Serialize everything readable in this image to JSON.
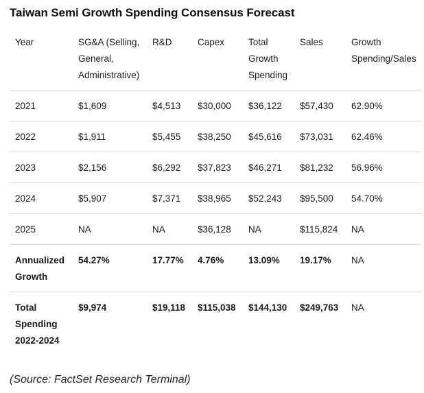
{
  "title": "Taiwan Semi Growth Spending Consensus Forecast",
  "table": {
    "headers": [
      [
        "Year"
      ],
      [
        "SG&A (Selling,",
        "General,",
        "Administrative)"
      ],
      [
        "R&D"
      ],
      [
        "Capex"
      ],
      [
        "Total",
        "Growth",
        "Spending"
      ],
      [
        "Sales"
      ],
      [
        "Growth",
        "Spending/Sales"
      ]
    ],
    "rows": [
      {
        "cells": [
          "2021",
          "$1,609",
          "$4,513",
          "$30,000",
          "$36,122",
          "$57,430",
          "62.90%"
        ]
      },
      {
        "cells": [
          "2022",
          "$1,911",
          "$5,455",
          "$38,250",
          "$45,616",
          "$73,031",
          "62.46%"
        ]
      },
      {
        "cells": [
          "2023",
          "$2,156",
          "$6,292",
          "$37,823",
          "$46,271",
          "$81,232",
          "56.96%"
        ]
      },
      {
        "cells": [
          "2024",
          "$5,907",
          "$7,371",
          "$38,965",
          "$52,243",
          "$95,500",
          "54.70%"
        ]
      },
      {
        "cells": [
          "2025",
          "NA",
          "NA",
          "$36,128",
          "NA",
          "$115,824",
          "NA"
        ]
      }
    ],
    "summary_rows": [
      {
        "label": [
          "Annualized",
          "Growth"
        ],
        "cells": [
          "54.27%",
          "17.77%",
          "4.76%",
          "13.09%",
          "19.17%",
          "NA"
        ]
      },
      {
        "label": [
          "Total",
          "Spending",
          "2022-2024"
        ],
        "cells": [
          "$9,974",
          "$19,118",
          "$115,038",
          "$144,130",
          "$249,763",
          "NA"
        ]
      }
    ]
  },
  "source": "(Source: FactSet Research Terminal)",
  "colors": {
    "text": "#1a1a1a",
    "divider": "#dcdcdc",
    "background": "#ffffff"
  }
}
